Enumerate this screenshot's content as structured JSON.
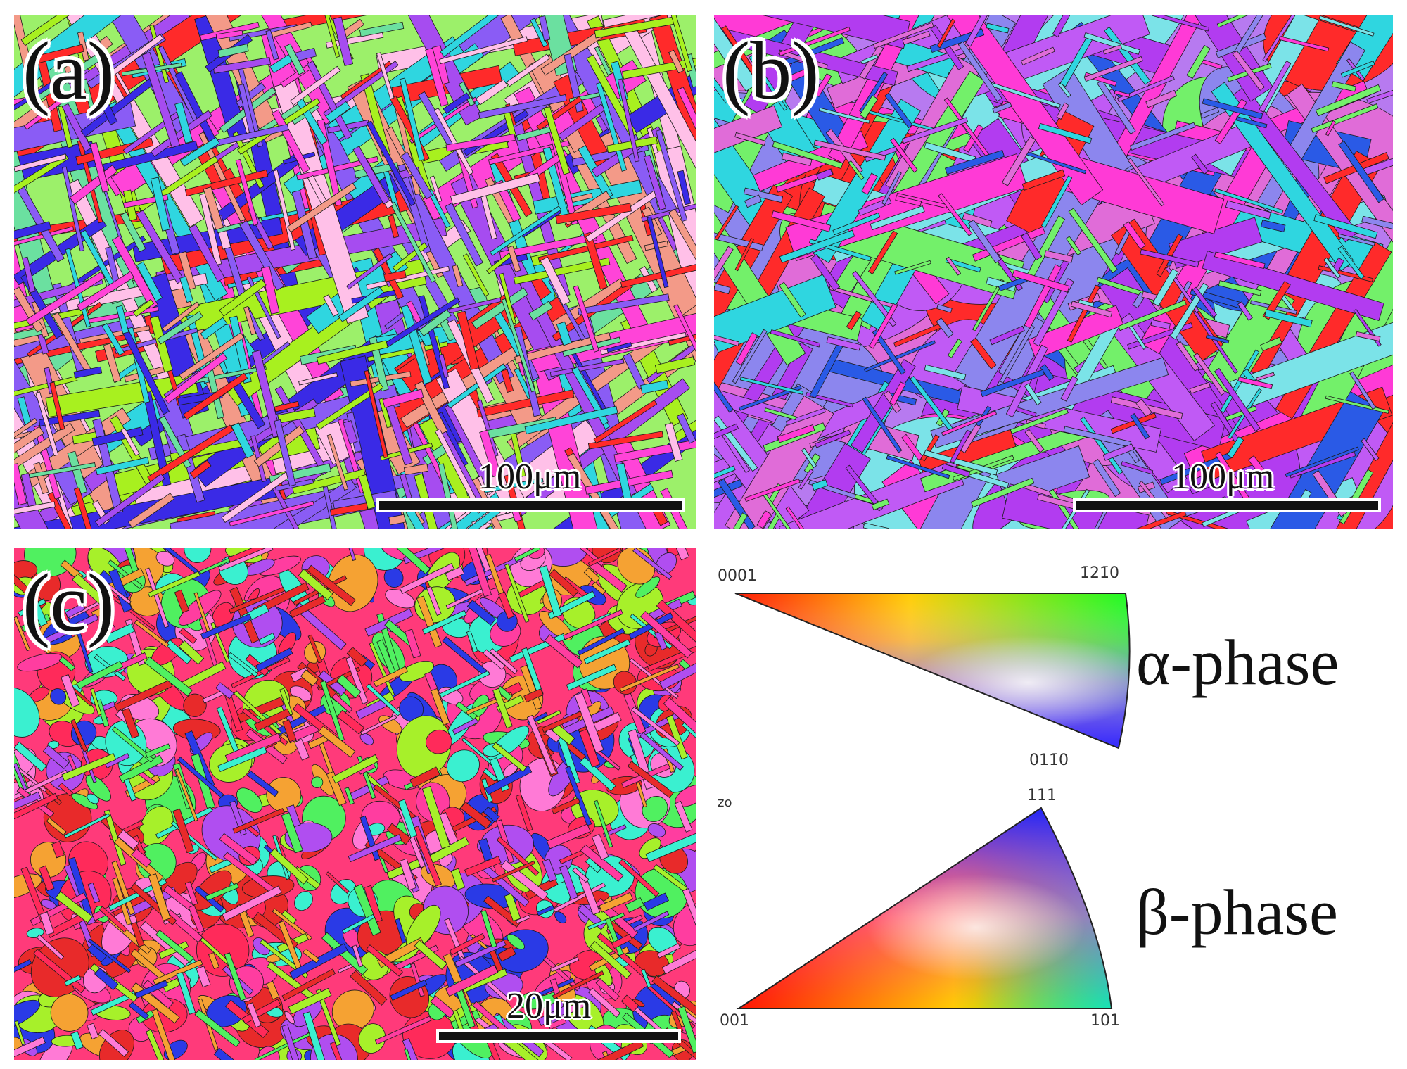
{
  "panels": {
    "a": {
      "label": "(a)",
      "scale": "100μm",
      "palette": [
        "#ff2a2a",
        "#3a2ae6",
        "#2fd6e0",
        "#ff44d8",
        "#a8f01f",
        "#a64cf0",
        "#f39a88",
        "#6be0a0",
        "#8a5cf5",
        "#ffc0e8"
      ]
    },
    "b": {
      "label": "(b)",
      "scale": "100μm",
      "palette": [
        "#ff2a2a",
        "#ff3ad6",
        "#b23cf0",
        "#2a5ae6",
        "#2fd6e0",
        "#73f06a",
        "#8c86ee",
        "#c05af5",
        "#7be3e8",
        "#e06cd8"
      ]
    },
    "c": {
      "label": "(c)",
      "scale": "20μm",
      "palette": [
        "#ff2a5a",
        "#ff3da0",
        "#a7f02a",
        "#50f060",
        "#b04ef0",
        "#2a3ae6",
        "#f5a233",
        "#ff7ad6",
        "#3af0d0",
        "#e82a2a"
      ]
    }
  },
  "legend": {
    "alpha": {
      "label": "α-phase",
      "corner_0001": "0001",
      "corner_1210": "1̄21̄0",
      "corner_0110": "011̄0"
    },
    "beta": {
      "label": "β-phase",
      "corner_111": "111",
      "corner_001": "001",
      "corner_101": "101"
    },
    "zo_label": "zo"
  }
}
